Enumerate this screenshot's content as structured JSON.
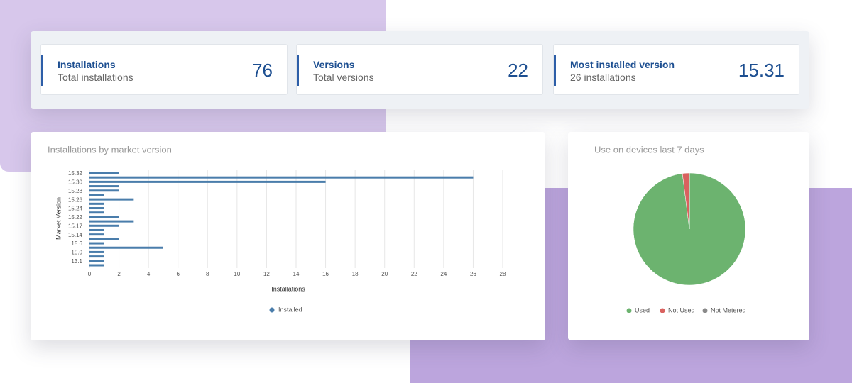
{
  "cards": [
    {
      "title": "Installations",
      "subtitle": "Total installations",
      "value": 76
    },
    {
      "title": "Versions",
      "subtitle": "Total versions",
      "value": 22
    },
    {
      "title": "Most installed version",
      "subtitle": "26 installations",
      "value": "15.31"
    }
  ],
  "chart_data": [
    {
      "type": "hbar",
      "title": "Installations by market version",
      "categories": [
        "15.32",
        null,
        "15.30",
        null,
        "15.28",
        null,
        "15.26",
        null,
        "15.24",
        null,
        "15.22",
        null,
        "15.17",
        null,
        "15.14",
        null,
        "15.6",
        null,
        "15.0",
        null,
        "13.1",
        null
      ],
      "series": [
        {
          "name": "Installed",
          "color": "#4a7dab",
          "values": [
            2,
            26,
            16,
            2,
            2,
            1,
            3,
            1,
            1,
            1,
            2,
            3,
            2,
            1,
            1,
            2,
            1,
            5,
            1,
            1,
            1,
            1
          ]
        }
      ],
      "xlim": [
        0,
        28
      ],
      "xticks": [
        0,
        2,
        4,
        6,
        8,
        10,
        12,
        14,
        16,
        18,
        20,
        22,
        24,
        26,
        28
      ],
      "xlabel": "Installations",
      "ylabel": "Market Version",
      "grid": true,
      "legend": "bottom"
    },
    {
      "type": "pie",
      "title": "Use on devices last 7 days",
      "categories": [
        "Used",
        "Not Used",
        "Not Metered"
      ],
      "values": [
        98,
        2,
        0
      ],
      "colors": [
        "#6cb36f",
        "#d9625f",
        "#8a8a8a"
      ],
      "legend": "bottom"
    }
  ]
}
